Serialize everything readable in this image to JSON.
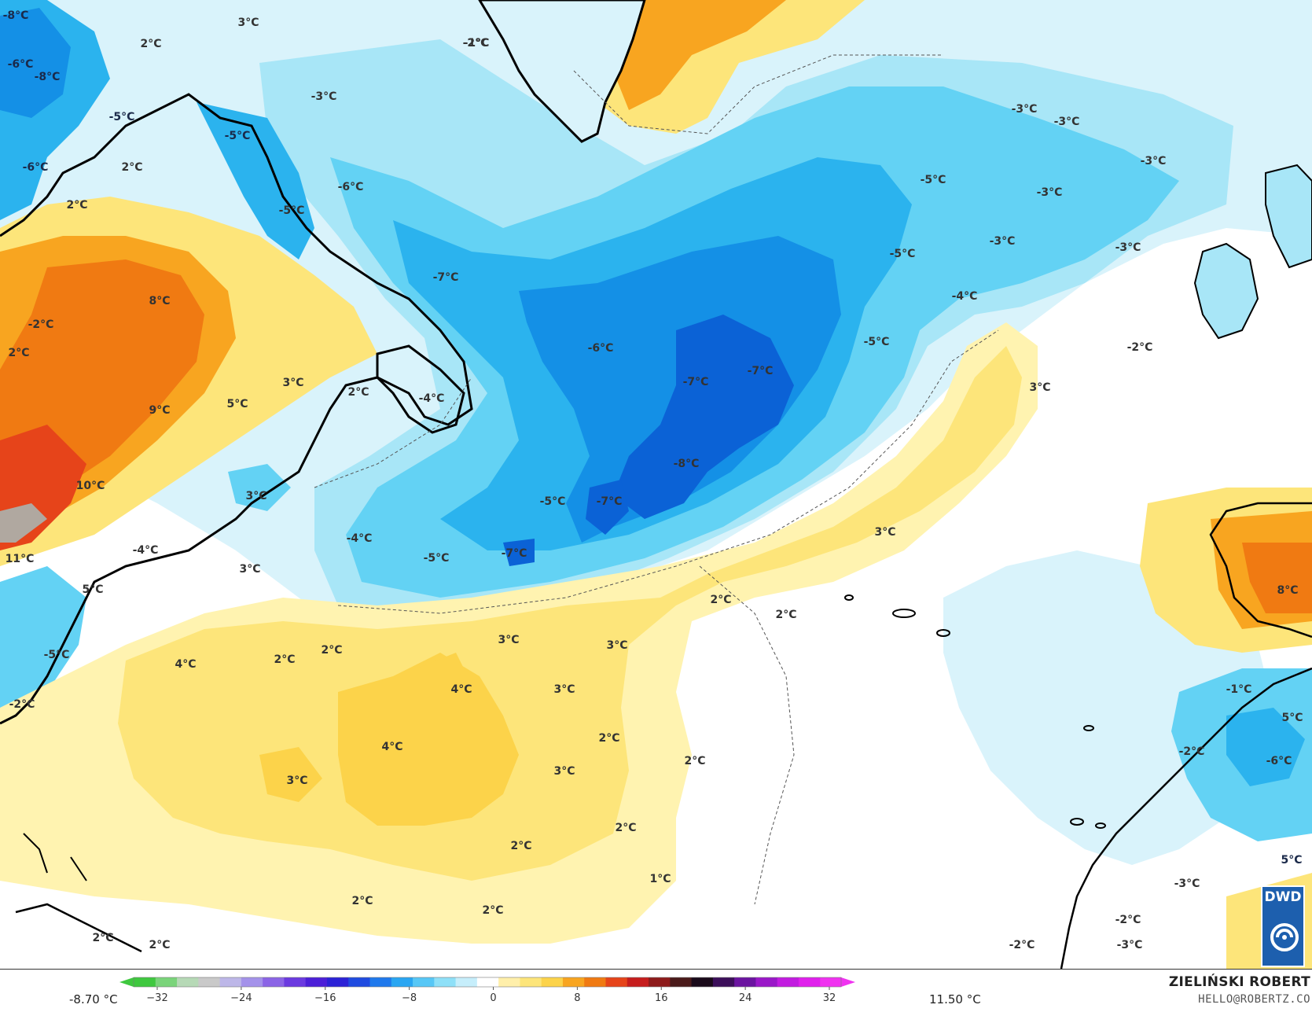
{
  "colors": {
    "ocean_neutral": "#ffffff",
    "pale_blue": "#d9f3fb",
    "light_blue": "#a8e6f7",
    "sky_blue": "#63d2f4",
    "medium_blue": "#2bb3ee",
    "deep_blue": "#1490e6",
    "darkest_blue": "#0b62d6",
    "pale_yellow": "#fff3b0",
    "yellow": "#fde57a",
    "gold": "#fcd34a",
    "orange": "#f8a520",
    "deep_orange": "#f07a12",
    "red_orange": "#e6441a",
    "coastline": "#000000"
  },
  "map": {
    "labels": [
      {
        "text": "-8°C"
      },
      {
        "text": "-6°C"
      },
      {
        "text": "-8°C"
      },
      {
        "text": "3°C"
      },
      {
        "text": "2°C"
      },
      {
        "text": "-5°C"
      },
      {
        "text": "-3°C"
      },
      {
        "text": "-5°C"
      },
      {
        "text": "-6°C"
      },
      {
        "text": "2°C"
      },
      {
        "text": "2°C"
      },
      {
        "text": "-6°C"
      },
      {
        "text": "-5°C"
      },
      {
        "text": "-1°C"
      },
      {
        "text": "-7°C"
      },
      {
        "text": "8°C"
      },
      {
        "text": "-2°C"
      },
      {
        "text": "2°C"
      },
      {
        "text": "3°C"
      },
      {
        "text": "2°C"
      },
      {
        "text": "-4°C"
      },
      {
        "text": "9°C"
      },
      {
        "text": "5°C"
      },
      {
        "text": "10°C"
      },
      {
        "text": "3°C"
      },
      {
        "text": "11°C"
      },
      {
        "text": "-4°C"
      },
      {
        "text": "3°C"
      },
      {
        "text": "5°C"
      },
      {
        "text": "-5°C"
      },
      {
        "text": "-2°C"
      },
      {
        "text": "-6°C"
      },
      {
        "text": "-7°C"
      },
      {
        "text": "-7°C"
      },
      {
        "text": "-8°C"
      },
      {
        "text": "-5°C"
      },
      {
        "text": "-7°C"
      },
      {
        "text": "-4°C"
      },
      {
        "text": "-5°C"
      },
      {
        "text": "-7°C"
      },
      {
        "text": "-2°C"
      },
      {
        "text": "-3°C"
      },
      {
        "text": "-3°C"
      },
      {
        "text": "-5°C"
      },
      {
        "text": "-3°C"
      },
      {
        "text": "-3°C"
      },
      {
        "text": "-3°C"
      },
      {
        "text": "-3°C"
      },
      {
        "text": "-5°C"
      },
      {
        "text": "-4°C"
      },
      {
        "text": "-5°C"
      },
      {
        "text": "-2°C"
      },
      {
        "text": "3°C"
      },
      {
        "text": "3°C"
      },
      {
        "text": "2°C"
      },
      {
        "text": "2°C"
      },
      {
        "text": "8°C"
      },
      {
        "text": "3°C"
      },
      {
        "text": "3°C"
      },
      {
        "text": "4°C"
      },
      {
        "text": "2°C"
      },
      {
        "text": "2°C"
      },
      {
        "text": "4°C"
      },
      {
        "text": "3°C"
      },
      {
        "text": "4°C"
      },
      {
        "text": "3°C"
      },
      {
        "text": "2°C"
      },
      {
        "text": "3°C"
      },
      {
        "text": "2°C"
      },
      {
        "text": "2°C"
      },
      {
        "text": "2°C"
      },
      {
        "text": "1°C"
      },
      {
        "text": "2°C"
      },
      {
        "text": "2°C"
      },
      {
        "text": "2°C"
      },
      {
        "text": "2°C"
      },
      {
        "text": "-1°C"
      },
      {
        "text": "5°C"
      },
      {
        "text": "-2°C"
      },
      {
        "text": "-6°C"
      },
      {
        "text": "5°C"
      },
      {
        "text": "-3°C"
      },
      {
        "text": "-2°C"
      },
      {
        "text": "-3°C"
      },
      {
        "text": "-2°C"
      }
    ]
  },
  "colorbar": {
    "min_label": "-8.70 °C",
    "max_label": "11.50 °C",
    "ticks": [
      "−32",
      "−24",
      "−16",
      "−8",
      "0",
      "8",
      "16",
      "24",
      "32"
    ]
  },
  "author": {
    "name": "ZIELIŃSKI ROBERT",
    "email": "HELLO@ROBERTZ.CO"
  },
  "logo": {
    "text": "DWD"
  }
}
